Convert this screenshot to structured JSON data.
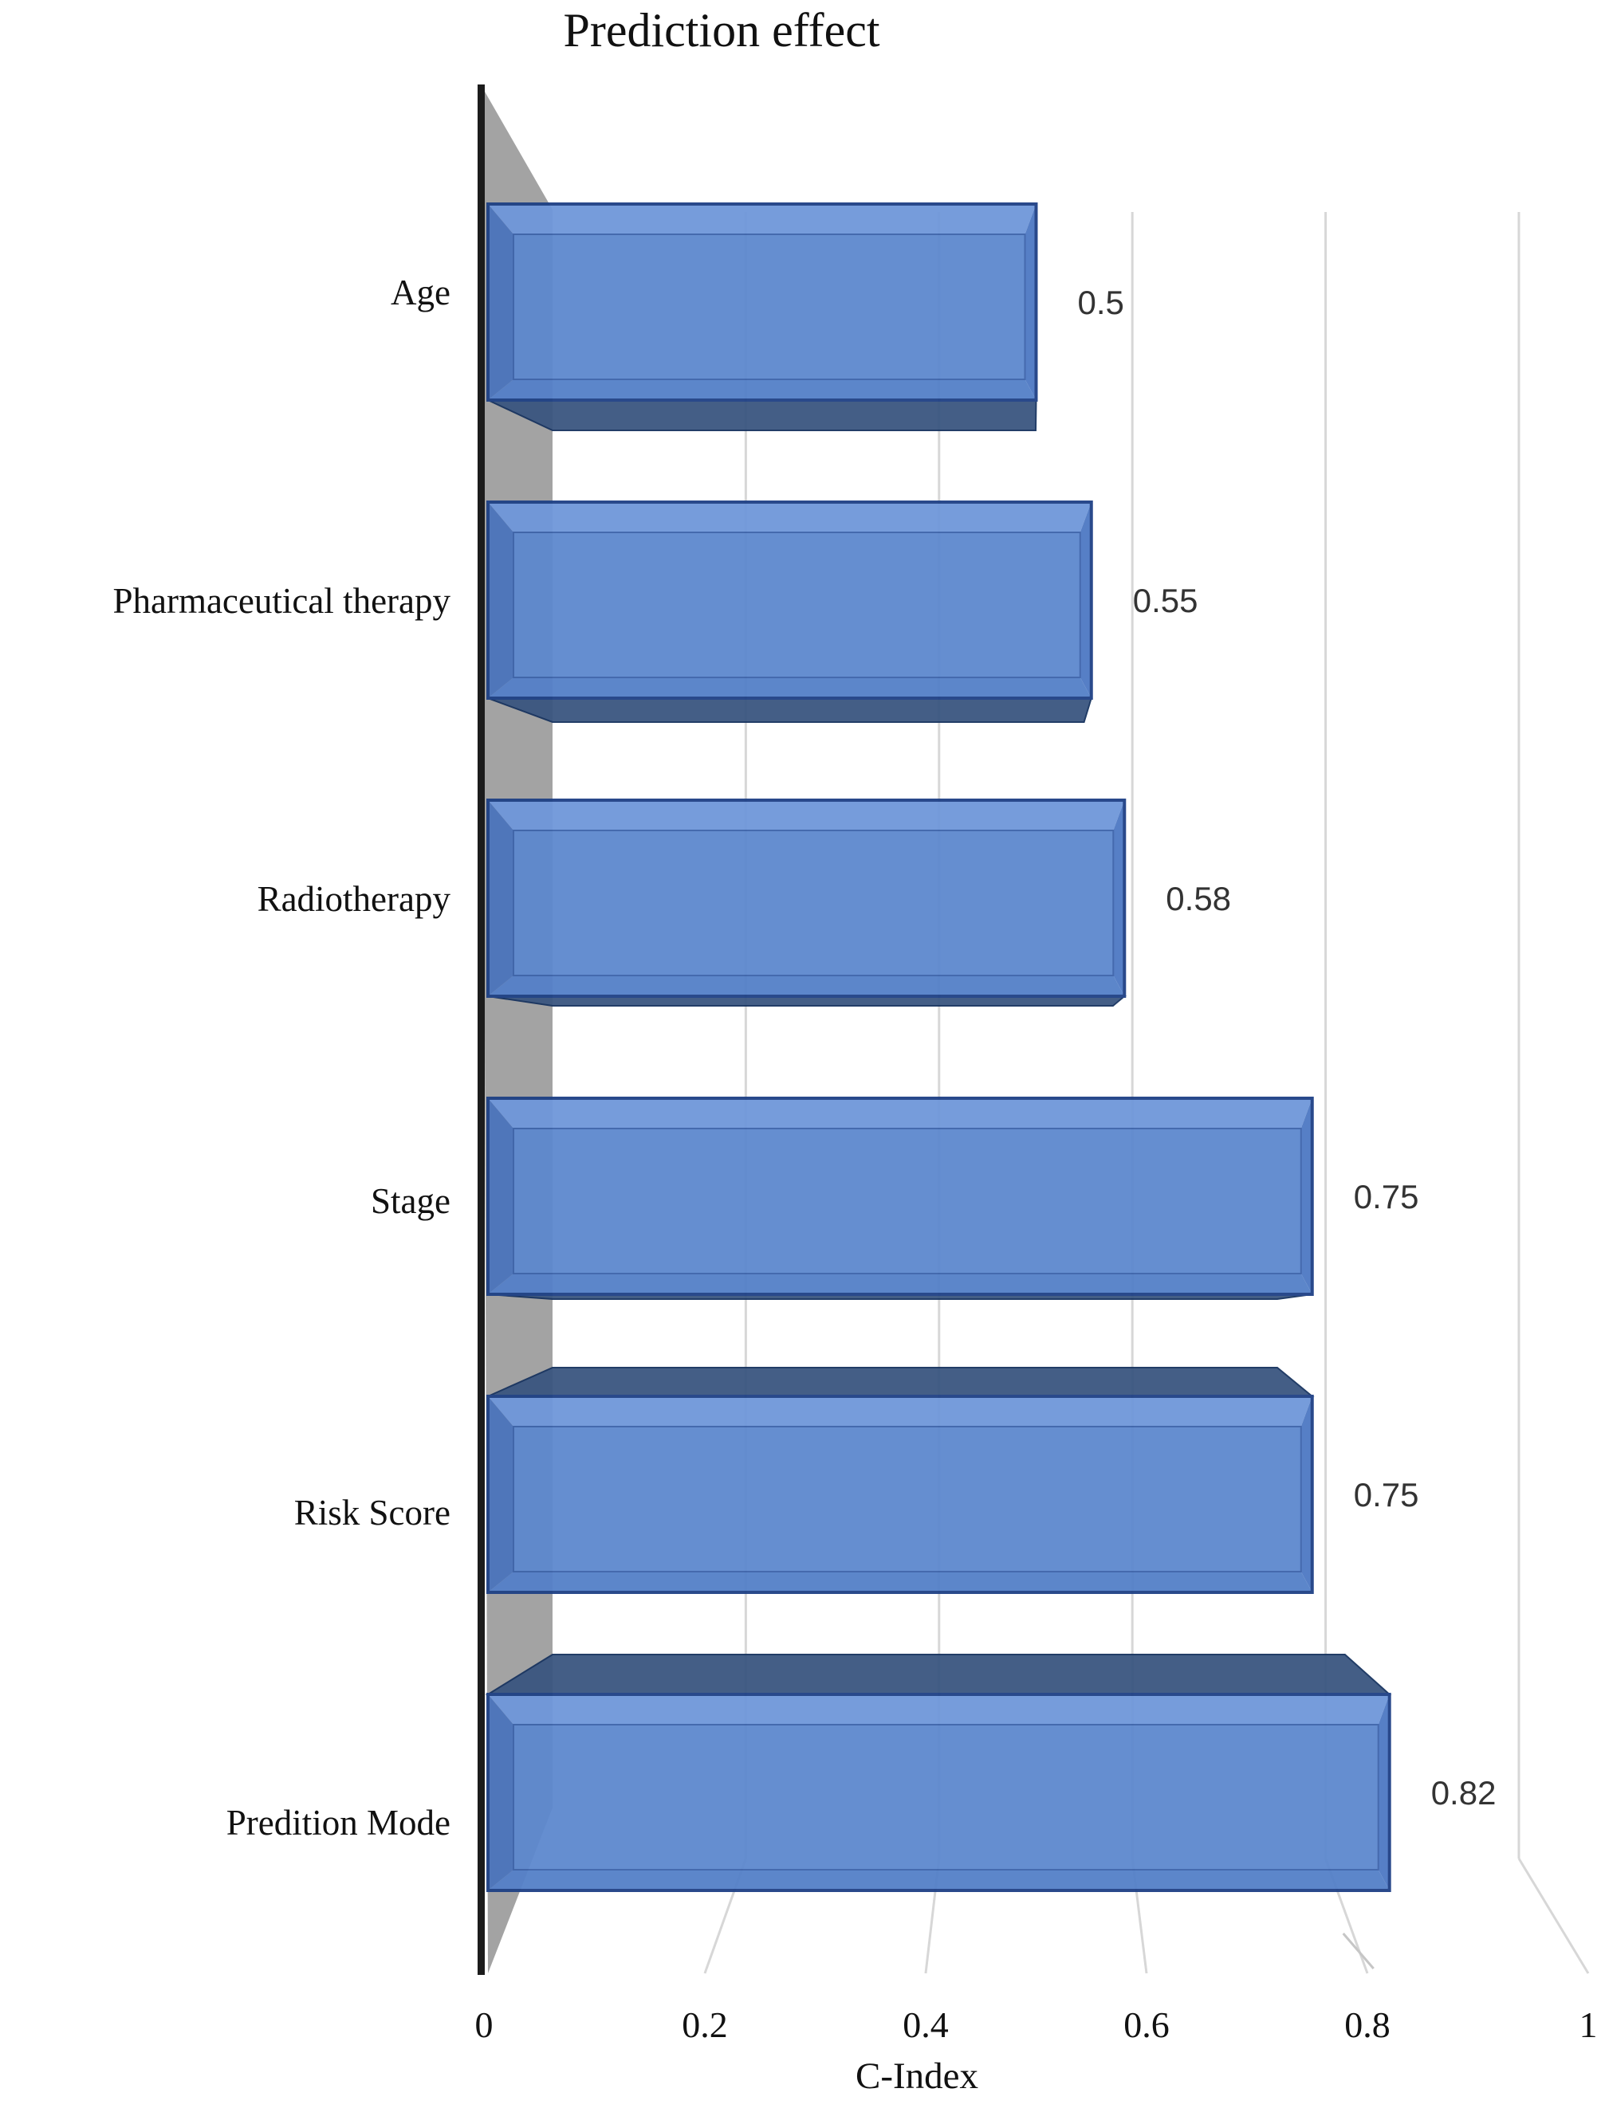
{
  "figure": {
    "title": "Prediction effect",
    "x_axis_label": "C-Index"
  },
  "chart_data": {
    "type": "bar",
    "orientation": "horizontal",
    "style": "3d-perspective",
    "title": "Prediction effect",
    "xlabel": "C-Index",
    "ylabel": "",
    "categories": [
      "Age",
      "Pharmaceutical therapy",
      "Radiotherapy",
      "Stage",
      "Risk Score",
      "Predition Mode"
    ],
    "values": [
      0.5,
      0.55,
      0.58,
      0.75,
      0.75,
      0.82
    ],
    "data_labels": [
      "0.5",
      "0.55",
      "0.58",
      "0.75",
      "0.75",
      "0.82"
    ],
    "x_ticks": [
      "0",
      "0.2",
      "0.4",
      "0.6",
      "0.8",
      "1"
    ],
    "x_tick_values": [
      0,
      0.2,
      0.4,
      0.6,
      0.8,
      1
    ],
    "xlim": [
      0,
      1
    ],
    "grid": true,
    "legend_position": "none",
    "colors": {
      "bar_face": "#5d88ce",
      "bar_bevel_top": "#6f97da",
      "bar_bevel_left": "#4b74bc",
      "bar_bevel_bottom": "#5480c8",
      "bar_bevel_right": "#4e79c3",
      "bar_seam": "#3c63aa",
      "bar_border": "#1e4085",
      "bar_depth_band": "#3a5680",
      "bar_depth_band_border": "#17335f",
      "side_wall": "#a3a3a3",
      "axis_line": "#1c1c1c",
      "gridline": "#d7d7d7",
      "text": "#111111",
      "value_text": "#333333"
    }
  }
}
